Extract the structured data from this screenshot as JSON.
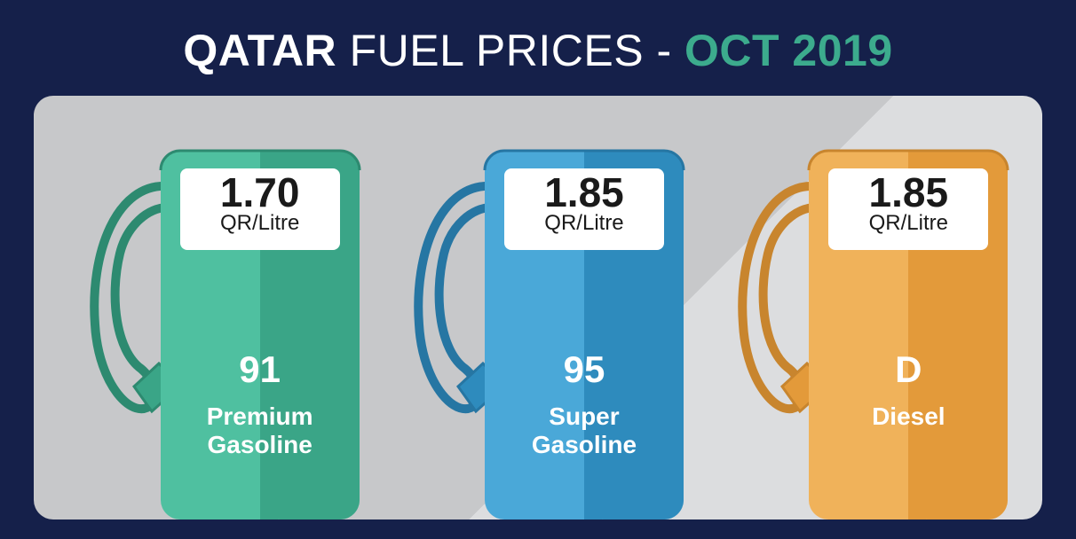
{
  "title": {
    "part1": "QATAR",
    "part2": " FUEL PRICES - ",
    "part3": "OCT 2019"
  },
  "layout": {
    "background_color": "#15204a",
    "panel_bg_light": "#dcdddf",
    "panel_bg_dark": "#c7c8ca",
    "panel_radius": 22,
    "title_color_main": "#ffffff",
    "title_color_accent": "#3cab8d"
  },
  "unit_label": "QR/Litre",
  "pumps": [
    {
      "price": "1.70",
      "grade": "91",
      "name": "Premium\nGasoline",
      "color_light": "#4fc0a0",
      "color_dark": "#3aa587",
      "stroke": "#2d8a70"
    },
    {
      "price": "1.85",
      "grade": "95",
      "name": "Super\nGasoline",
      "color_light": "#4aa8d8",
      "color_dark": "#2e8bbd",
      "stroke": "#2676a3"
    },
    {
      "price": "1.85",
      "grade": "D",
      "name": "Diesel",
      "color_light": "#f0b25a",
      "color_dark": "#e39a3a",
      "stroke": "#c8852e"
    }
  ]
}
